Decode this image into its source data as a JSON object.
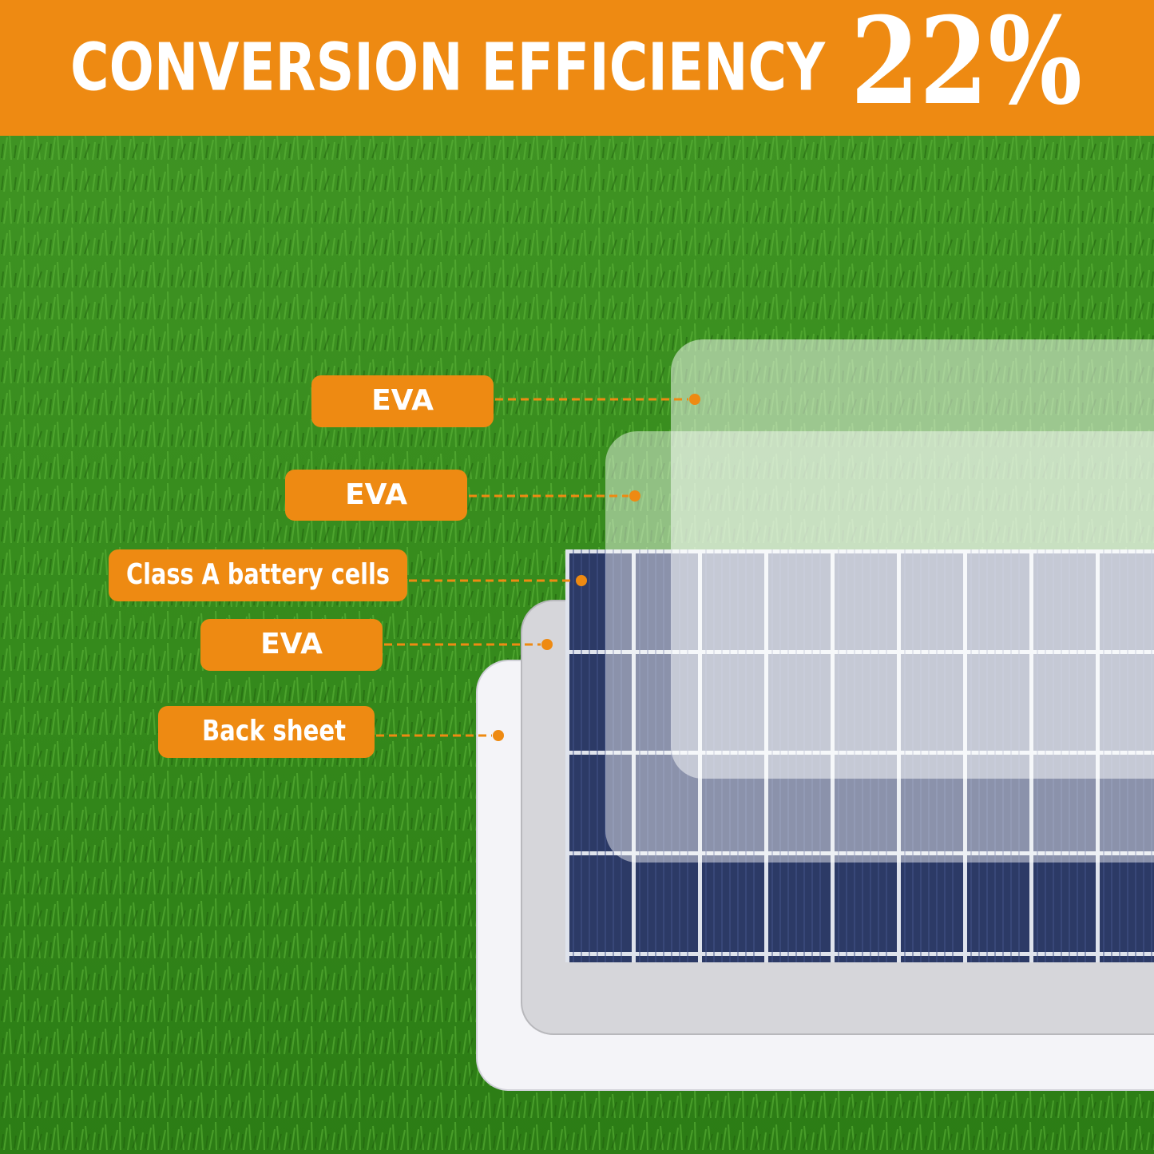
{
  "header": {
    "title": "CONVERSION EFFICIENCY",
    "highlight": "22%"
  },
  "layers": [
    {
      "label": "EVA"
    },
    {
      "label": "EVA"
    },
    {
      "label": "Class A battery cells"
    },
    {
      "label": "EVA"
    },
    {
      "label": "Back sheet"
    }
  ]
}
